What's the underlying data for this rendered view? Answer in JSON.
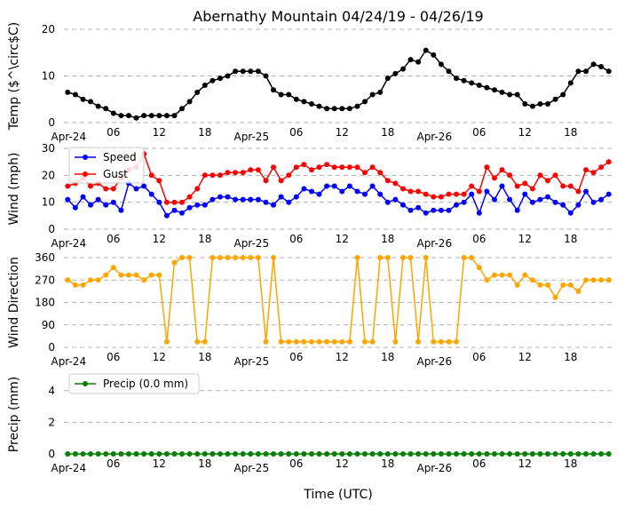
{
  "chart_data": {
    "title": "Abernathy Mountain 04/24/19 - 04/26/19",
    "xlabel": "Time (UTC)",
    "x_ticks": [
      "Apr-24",
      "06",
      "12",
      "18",
      "Apr-25",
      "06",
      "12",
      "18",
      "Apr-26",
      "06",
      "12",
      "18"
    ],
    "x_tick_hours": [
      0,
      6,
      12,
      18,
      24,
      30,
      36,
      42,
      48,
      54,
      60,
      66
    ],
    "x_range": [
      -0.5,
      71.5
    ],
    "hours": [
      0,
      1,
      2,
      3,
      4,
      5,
      6,
      7,
      8,
      9,
      10,
      11,
      12,
      13,
      14,
      15,
      16,
      17,
      18,
      19,
      20,
      21,
      22,
      23,
      24,
      25,
      26,
      27,
      28,
      29,
      30,
      31,
      32,
      33,
      34,
      35,
      36,
      37,
      38,
      39,
      40,
      41,
      42,
      43,
      44,
      45,
      46,
      47,
      48,
      49,
      50,
      51,
      52,
      53,
      54,
      55,
      56,
      57,
      58,
      59,
      60,
      61,
      62,
      63,
      64,
      65,
      66,
      67,
      68,
      69,
      70,
      71
    ],
    "panels": [
      {
        "type": "line",
        "ylabel": "Temp ($^\\circ$C)",
        "ylim": [
          0,
          20
        ],
        "yticks": [
          "0",
          "10",
          "20"
        ],
        "ytick_values": [
          0,
          10,
          20
        ],
        "series": [
          {
            "name": "Temp",
            "color": "#000000",
            "values": [
              6.5,
              6,
              5,
              4.5,
              3.5,
              3,
              2,
              1.5,
              1.5,
              1,
              1.5,
              1.5,
              1.5,
              1.5,
              1.5,
              3,
              4.5,
              6.5,
              8,
              9,
              9.5,
              10,
              11,
              11,
              11,
              11,
              10,
              7,
              6,
              6,
              5,
              4.5,
              4,
              3.5,
              3,
              3,
              3,
              3,
              3.5,
              4.5,
              6,
              6.5,
              9.5,
              10.5,
              11.5,
              13.5,
              13,
              15.5,
              14.5,
              12.5,
              11,
              9.5,
              9,
              8.5,
              8,
              7.5,
              7,
              6.5,
              6,
              6,
              4,
              3.5,
              4,
              4,
              5,
              6,
              8.5,
              11,
              11,
              12.5,
              12,
              11
            ]
          }
        ]
      },
      {
        "type": "line",
        "ylabel": "Wind (mph)",
        "ylim": [
          0,
          30
        ],
        "yticks": [
          "0",
          "10",
          "20",
          "30"
        ],
        "ytick_values": [
          0,
          10,
          20,
          30
        ],
        "legend": "top-left",
        "series": [
          {
            "name": "Speed",
            "color": "#0000ff",
            "values": [
              11,
              8,
              12,
              9,
              11,
              9,
              10,
              7,
              17,
              15,
              16,
              13,
              10,
              5,
              7,
              6,
              8,
              9,
              9,
              11,
              12,
              12,
              11,
              11,
              11,
              11,
              10,
              9,
              12,
              10,
              12,
              15,
              14,
              13,
              16,
              16,
              14,
              16,
              14,
              13,
              16,
              13,
              10,
              11,
              9,
              7,
              8,
              6,
              7,
              7,
              7,
              9,
              10,
              13,
              6,
              14,
              11,
              16,
              11,
              7,
              13,
              10,
              11,
              12,
              10,
              9,
              6,
              9,
              14,
              10,
              11,
              13
            ]
          },
          {
            "name": "Gust",
            "color": "#ff0000",
            "values": [
              16,
              17,
              19,
              16,
              17,
              15,
              15,
              19,
              22,
              23,
              28,
              20,
              18,
              10,
              10,
              10,
              12,
              15,
              20,
              20,
              20,
              21,
              21,
              21,
              22,
              22,
              18,
              23,
              18,
              20,
              23,
              24,
              22,
              23,
              24,
              23,
              23,
              23,
              23,
              21,
              23,
              21,
              18,
              17,
              15,
              14,
              14,
              13,
              12,
              12,
              13,
              13,
              13,
              16,
              14,
              23,
              19,
              22,
              20,
              16,
              17,
              15,
              20,
              18,
              20,
              16,
              16,
              14,
              22,
              21,
              23,
              25
            ]
          }
        ]
      },
      {
        "type": "line",
        "ylabel": "Wind Direction",
        "ylim": [
          0,
          360
        ],
        "yticks": [
          "0",
          "90",
          "180",
          "270",
          "360"
        ],
        "ytick_values": [
          0,
          90,
          180,
          270,
          360
        ],
        "series": [
          {
            "name": "Direction",
            "color": "#ffa500",
            "values": [
              270,
              250,
              250,
              270,
              270,
              290,
              320,
              290,
              290,
              290,
              270,
              290,
              290,
              22,
              340,
              360,
              360,
              22,
              22,
              360,
              360,
              360,
              360,
              360,
              360,
              360,
              22,
              360,
              22,
              22,
              22,
              22,
              22,
              22,
              22,
              22,
              22,
              22,
              360,
              22,
              22,
              360,
              360,
              22,
              360,
              360,
              22,
              360,
              22,
              22,
              22,
              22,
              360,
              360,
              320,
              270,
              290,
              290,
              290,
              250,
              290,
              270,
              250,
              250,
              200,
              250,
              250,
              225,
              270,
              270,
              270,
              270
            ]
          }
        ]
      },
      {
        "type": "line",
        "ylabel": "Precip (mm)",
        "ylim": [
          0,
          5
        ],
        "yticks": [
          "0",
          "2",
          "4"
        ],
        "ytick_values": [
          0,
          2,
          4
        ],
        "legend": "top-left",
        "series": [
          {
            "name": "Precip (0.0 mm)",
            "color": "#008000",
            "values": [
              0,
              0,
              0,
              0,
              0,
              0,
              0,
              0,
              0,
              0,
              0,
              0,
              0,
              0,
              0,
              0,
              0,
              0,
              0,
              0,
              0,
              0,
              0,
              0,
              0,
              0,
              0,
              0,
              0,
              0,
              0,
              0,
              0,
              0,
              0,
              0,
              0,
              0,
              0,
              0,
              0,
              0,
              0,
              0,
              0,
              0,
              0,
              0,
              0,
              0,
              0,
              0,
              0,
              0,
              0,
              0,
              0,
              0,
              0,
              0,
              0,
              0,
              0,
              0,
              0,
              0,
              0,
              0,
              0,
              0,
              0,
              0
            ]
          }
        ]
      }
    ]
  }
}
